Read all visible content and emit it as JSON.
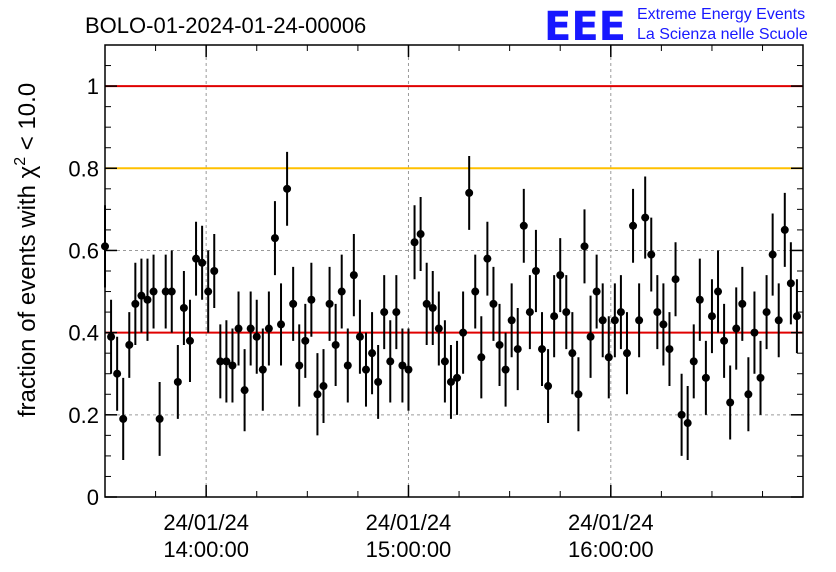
{
  "title": "BOLO-01-2024-01-24-00006",
  "logo": {
    "mark": "EEE",
    "line1": "Extreme Energy Events",
    "line2": "La Scienza nelle Scuole",
    "color": "#1818ff"
  },
  "chart_data": {
    "type": "scatter",
    "title": "BOLO-01-2024-01-24-00006",
    "ylabel": "fraction of events with χ² < 10.0",
    "ylim": [
      0,
      1.1
    ],
    "x_hours_range": [
      13.5,
      16.95
    ],
    "yticks": [
      0,
      0.2,
      0.4,
      0.6,
      0.8,
      1
    ],
    "ytick_labels": [
      "0",
      "0.2",
      "0.4",
      "0.6",
      "0.8",
      "1"
    ],
    "xticks": [
      {
        "hour": 14,
        "date": "24/01/24",
        "time": "14:00:00"
      },
      {
        "hour": 15,
        "date": "24/01/24",
        "time": "15:00:00"
      },
      {
        "hour": 16,
        "date": "24/01/24",
        "time": "16:00:00"
      }
    ],
    "grid": true,
    "reference_lines": [
      {
        "y": 1.0,
        "color": "#e00000"
      },
      {
        "y": 0.8,
        "color": "#ffc000"
      },
      {
        "y": 0.4,
        "color": "#e00000"
      }
    ],
    "series": [
      {
        "marker_color": "#000000",
        "points": [
          [
            13.5,
            0.61,
            0.1
          ],
          [
            13.53,
            0.39,
            0.09
          ],
          [
            13.56,
            0.3,
            0.09
          ],
          [
            13.59,
            0.19,
            0.1
          ],
          [
            13.62,
            0.37,
            0.08
          ],
          [
            13.65,
            0.47,
            0.1
          ],
          [
            13.68,
            0.49,
            0.09
          ],
          [
            13.71,
            0.48,
            0.1
          ],
          [
            13.74,
            0.5,
            0.09
          ],
          [
            13.77,
            0.19,
            0.09
          ],
          [
            13.8,
            0.5,
            0.09
          ],
          [
            13.83,
            0.5,
            0.1
          ],
          [
            13.86,
            0.28,
            0.09
          ],
          [
            13.89,
            0.46,
            0.09
          ],
          [
            13.92,
            0.38,
            0.1
          ],
          [
            13.95,
            0.58,
            0.09
          ],
          [
            13.98,
            0.57,
            0.09
          ],
          [
            14.01,
            0.5,
            0.1
          ],
          [
            14.04,
            0.55,
            0.09
          ],
          [
            14.07,
            0.33,
            0.09
          ],
          [
            14.1,
            0.33,
            0.1
          ],
          [
            14.13,
            0.32,
            0.09
          ],
          [
            14.16,
            0.41,
            0.09
          ],
          [
            14.19,
            0.26,
            0.1
          ],
          [
            14.22,
            0.41,
            0.09
          ],
          [
            14.25,
            0.39,
            0.09
          ],
          [
            14.28,
            0.31,
            0.1
          ],
          [
            14.31,
            0.41,
            0.09
          ],
          [
            14.34,
            0.63,
            0.09
          ],
          [
            14.37,
            0.42,
            0.1
          ],
          [
            14.4,
            0.75,
            0.09
          ],
          [
            14.43,
            0.47,
            0.09
          ],
          [
            14.46,
            0.32,
            0.1
          ],
          [
            14.49,
            0.38,
            0.09
          ],
          [
            14.52,
            0.48,
            0.09
          ],
          [
            14.55,
            0.25,
            0.1
          ],
          [
            14.58,
            0.27,
            0.09
          ],
          [
            14.61,
            0.47,
            0.09
          ],
          [
            14.64,
            0.37,
            0.1
          ],
          [
            14.67,
            0.5,
            0.09
          ],
          [
            14.7,
            0.32,
            0.09
          ],
          [
            14.73,
            0.54,
            0.1
          ],
          [
            14.76,
            0.39,
            0.09
          ],
          [
            14.79,
            0.31,
            0.09
          ],
          [
            14.82,
            0.35,
            0.1
          ],
          [
            14.85,
            0.28,
            0.09
          ],
          [
            14.88,
            0.45,
            0.09
          ],
          [
            14.91,
            0.33,
            0.1
          ],
          [
            14.94,
            0.45,
            0.09
          ],
          [
            14.97,
            0.32,
            0.09
          ],
          [
            15.0,
            0.31,
            0.1
          ],
          [
            15.03,
            0.62,
            0.09
          ],
          [
            15.06,
            0.64,
            0.09
          ],
          [
            15.09,
            0.47,
            0.1
          ],
          [
            15.12,
            0.46,
            0.09
          ],
          [
            15.15,
            0.41,
            0.09
          ],
          [
            15.18,
            0.33,
            0.1
          ],
          [
            15.21,
            0.28,
            0.09
          ],
          [
            15.24,
            0.29,
            0.09
          ],
          [
            15.27,
            0.4,
            0.1
          ],
          [
            15.3,
            0.74,
            0.09
          ],
          [
            15.33,
            0.5,
            0.09
          ],
          [
            15.36,
            0.34,
            0.1
          ],
          [
            15.39,
            0.58,
            0.09
          ],
          [
            15.42,
            0.47,
            0.09
          ],
          [
            15.45,
            0.37,
            0.1
          ],
          [
            15.48,
            0.31,
            0.09
          ],
          [
            15.51,
            0.43,
            0.09
          ],
          [
            15.54,
            0.36,
            0.1
          ],
          [
            15.57,
            0.66,
            0.09
          ],
          [
            15.6,
            0.45,
            0.09
          ],
          [
            15.63,
            0.55,
            0.1
          ],
          [
            15.66,
            0.36,
            0.09
          ],
          [
            15.69,
            0.27,
            0.09
          ],
          [
            15.72,
            0.44,
            0.1
          ],
          [
            15.75,
            0.54,
            0.09
          ],
          [
            15.78,
            0.45,
            0.09
          ],
          [
            15.81,
            0.35,
            0.1
          ],
          [
            15.84,
            0.25,
            0.09
          ],
          [
            15.87,
            0.61,
            0.09
          ],
          [
            15.9,
            0.39,
            0.1
          ],
          [
            15.93,
            0.5,
            0.09
          ],
          [
            15.96,
            0.43,
            0.09
          ],
          [
            15.99,
            0.34,
            0.1
          ],
          [
            16.02,
            0.43,
            0.09
          ],
          [
            16.05,
            0.45,
            0.09
          ],
          [
            16.08,
            0.35,
            0.1
          ],
          [
            16.11,
            0.66,
            0.09
          ],
          [
            16.14,
            0.43,
            0.09
          ],
          [
            16.17,
            0.68,
            0.1
          ],
          [
            16.2,
            0.59,
            0.09
          ],
          [
            16.23,
            0.45,
            0.09
          ],
          [
            16.26,
            0.42,
            0.1
          ],
          [
            16.29,
            0.36,
            0.09
          ],
          [
            16.32,
            0.53,
            0.09
          ],
          [
            16.35,
            0.2,
            0.1
          ],
          [
            16.38,
            0.18,
            0.09
          ],
          [
            16.41,
            0.33,
            0.09
          ],
          [
            16.44,
            0.48,
            0.1
          ],
          [
            16.47,
            0.29,
            0.09
          ],
          [
            16.5,
            0.44,
            0.09
          ],
          [
            16.53,
            0.5,
            0.1
          ],
          [
            16.56,
            0.38,
            0.09
          ],
          [
            16.59,
            0.23,
            0.09
          ],
          [
            16.62,
            0.41,
            0.1
          ],
          [
            16.65,
            0.47,
            0.09
          ],
          [
            16.68,
            0.25,
            0.09
          ],
          [
            16.71,
            0.4,
            0.1
          ],
          [
            16.74,
            0.29,
            0.09
          ],
          [
            16.77,
            0.45,
            0.09
          ],
          [
            16.8,
            0.59,
            0.1
          ],
          [
            16.83,
            0.43,
            0.09
          ],
          [
            16.86,
            0.65,
            0.09
          ],
          [
            16.89,
            0.52,
            0.1
          ],
          [
            16.92,
            0.44,
            0.09
          ]
        ]
      }
    ]
  }
}
